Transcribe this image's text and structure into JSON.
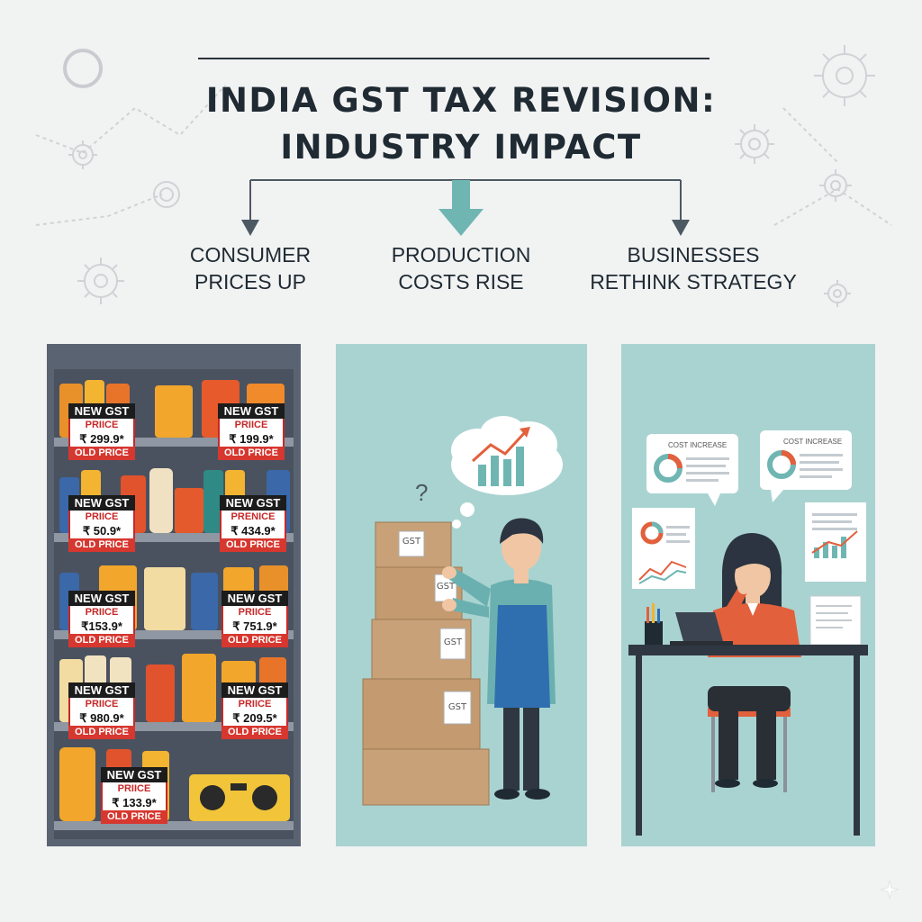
{
  "title": {
    "line1": "INDIA GST TAX REVISION:",
    "line2": "INDUSTRY IMPACT"
  },
  "branches": [
    {
      "line1": "CONSUMER",
      "line2": "PRICES UP"
    },
    {
      "line1": "PRODUCTION",
      "line2": "COSTS RISE"
    },
    {
      "line1": "BUSINESSES",
      "line2": "RETHINK STRATEGY"
    }
  ],
  "price_tags": [
    {
      "label": "NEW GST",
      "sub": "PRIICE",
      "price": "₹ 299.9*",
      "old": "OLD PRICE"
    },
    {
      "label": "NEW GST",
      "sub": "PRIICE",
      "price": "₹ 199.9*",
      "old": "OLD PRICE"
    },
    {
      "label": "NEW GST",
      "sub": "PRIICE",
      "price": "₹ 50.9*",
      "old": "OLD PRICE"
    },
    {
      "label": "NEW GST",
      "sub": "PRENICE",
      "price": "₹ 434.9*",
      "old": "OLD PRICE"
    },
    {
      "label": "NEW GST",
      "sub": "PRIICE",
      "price": "₹153.9*",
      "old": "OLD PRICE"
    },
    {
      "label": "NEW GST",
      "sub": "PRIICE",
      "price": "₹ 751.9*",
      "old": "OLD PRICE"
    },
    {
      "label": "NEW GST",
      "sub": "PRIICE",
      "price": "₹ 980.9*",
      "old": "OLD PRICE"
    },
    {
      "label": "NEW GST",
      "sub": "PRIICE",
      "price": "₹ 209.5*",
      "old": "OLD PRICE"
    },
    {
      "label": "NEW GST",
      "sub": "PRIICE",
      "price": "₹ 133.9*",
      "old": "OLD PRICE"
    }
  ],
  "box_label": "GST",
  "question_mark": "?",
  "bubbles": [
    {
      "label": "COST INCREASE"
    },
    {
      "label": "COST INCREASE"
    }
  ],
  "colors": {
    "shelf": "#5a6372",
    "panel": "#a9d3d1",
    "tag_red": "#d6372f",
    "box": "#c9a178",
    "apron": "#2f6fb0",
    "shirt": "#e2603c"
  }
}
